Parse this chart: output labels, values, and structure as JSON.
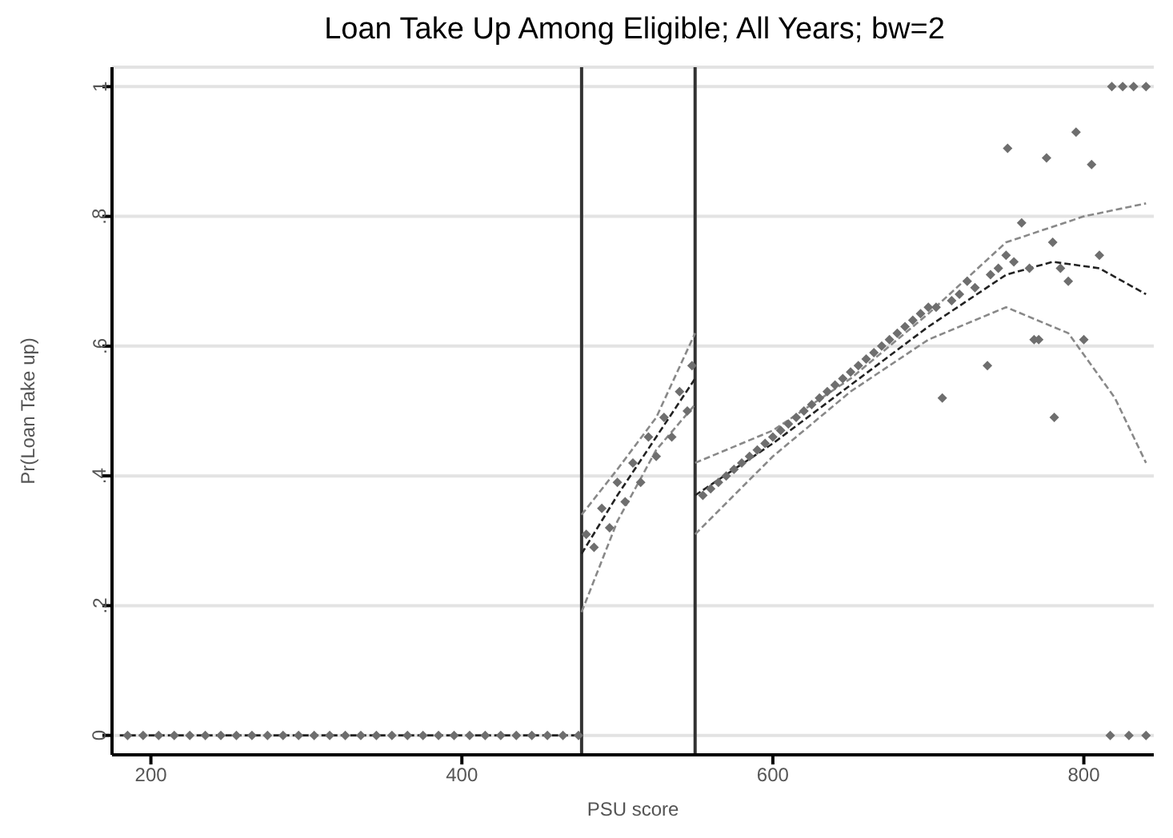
{
  "chart_data": {
    "type": "scatter",
    "title": "Loan Take Up Among Eligible; All Years; bw=2",
    "xlabel": "PSU score",
    "ylabel": "Pr(Loan Take up)",
    "xlim": [
      175,
      845
    ],
    "xticks": [
      200,
      400,
      600,
      800
    ],
    "ylim": [
      -0.03,
      1.03
    ],
    "yticks": [
      0,
      {
        "value": 0.2,
        "label": ".2"
      },
      {
        "value": 0.4,
        "label": ".4"
      },
      {
        "value": 0.6,
        "label": ".6"
      },
      {
        "value": 0.8,
        "label": ".8"
      },
      1
    ],
    "grid": "y",
    "marker": "diamond",
    "legend": false,
    "ref_lines": [
      {
        "axis": "x",
        "value": 477,
        "color": "#333333"
      },
      {
        "axis": "x",
        "value": 550,
        "color": "#333333"
      }
    ],
    "series": [
      {
        "color": "#6e6e6e",
        "x": [
          185,
          195,
          205,
          215,
          225,
          235,
          245,
          255,
          265,
          275,
          285,
          295,
          305,
          315,
          325,
          335,
          345,
          355,
          365,
          375,
          385,
          395,
          405,
          415,
          425,
          435,
          445,
          455,
          465,
          475,
          480,
          485,
          490,
          495,
          500,
          505,
          510,
          515,
          520,
          525,
          530,
          535,
          540,
          545,
          548,
          555,
          560,
          565,
          570,
          575,
          580,
          585,
          590,
          595,
          600,
          605,
          610,
          615,
          620,
          625,
          630,
          635,
          640,
          645,
          650,
          655,
          660,
          665,
          670,
          675,
          680,
          685,
          690,
          695,
          700,
          705,
          709,
          715,
          720,
          725,
          730,
          738,
          740,
          745,
          750,
          751,
          755,
          760,
          765,
          768,
          771,
          776,
          780,
          781,
          785,
          790,
          795,
          800,
          805,
          810,
          818,
          825,
          832,
          840,
          817,
          829,
          840
        ],
        "values": [
          0,
          0,
          0,
          0,
          0,
          0,
          0,
          0,
          0,
          0,
          0,
          0,
          0,
          0,
          0,
          0,
          0,
          0,
          0,
          0,
          0,
          0,
          0,
          0,
          0,
          0,
          0,
          0,
          0,
          0,
          0.31,
          0.29,
          0.35,
          0.32,
          0.39,
          0.36,
          0.42,
          0.39,
          0.46,
          0.43,
          0.49,
          0.46,
          0.53,
          0.5,
          0.57,
          0.37,
          0.38,
          0.39,
          0.4,
          0.41,
          0.42,
          0.43,
          0.44,
          0.45,
          0.46,
          0.47,
          0.48,
          0.49,
          0.5,
          0.51,
          0.52,
          0.53,
          0.54,
          0.55,
          0.56,
          0.57,
          0.58,
          0.59,
          0.6,
          0.61,
          0.62,
          0.63,
          0.64,
          0.65,
          0.66,
          0.66,
          0.52,
          0.67,
          0.68,
          0.7,
          0.69,
          0.57,
          0.71,
          0.72,
          0.74,
          0.905,
          0.73,
          0.79,
          0.72,
          0.61,
          0.61,
          0.89,
          0.76,
          0.49,
          0.72,
          0.7,
          0.93,
          0.61,
          0.88,
          0.74,
          1,
          1,
          1,
          1,
          0,
          0,
          0
        ]
      },
      {
        "type": "line",
        "marker": "none",
        "color": "#222222",
        "line_style": "dashed",
        "x": [
          180,
          477
        ],
        "values": [
          0,
          0
        ]
      },
      {
        "type": "line",
        "marker": "none",
        "color": "#222222",
        "line_style": "dashed",
        "x": [
          477,
          500,
          525,
          550
        ],
        "values": [
          0.28,
          0.37,
          0.46,
          0.55
        ]
      },
      {
        "type": "line",
        "marker": "none",
        "color": "#888888",
        "line_style": "dashed",
        "x": [
          477,
          500,
          525,
          550
        ],
        "values": [
          0.19,
          0.33,
          0.44,
          0.51
        ]
      },
      {
        "type": "line",
        "marker": "none",
        "color": "#888888",
        "line_style": "dashed",
        "x": [
          477,
          500,
          525,
          550
        ],
        "values": [
          0.34,
          0.41,
          0.49,
          0.62
        ]
      },
      {
        "type": "line",
        "marker": "none",
        "color": "#222222",
        "line_style": "dashed",
        "x": [
          550,
          600,
          650,
          700,
          750,
          780,
          810,
          840
        ],
        "values": [
          0.37,
          0.45,
          0.54,
          0.63,
          0.71,
          0.73,
          0.72,
          0.68
        ]
      },
      {
        "type": "line",
        "marker": "none",
        "color": "#888888",
        "line_style": "dashed",
        "x": [
          550,
          600,
          650,
          700,
          750,
          790,
          820,
          840
        ],
        "values": [
          0.31,
          0.43,
          0.53,
          0.61,
          0.66,
          0.62,
          0.52,
          0.42
        ]
      },
      {
        "type": "line",
        "marker": "none",
        "color": "#888888",
        "line_style": "dashed",
        "x": [
          550,
          600,
          650,
          700,
          750,
          800,
          840
        ],
        "values": [
          0.42,
          0.47,
          0.55,
          0.65,
          0.76,
          0.8,
          0.82
        ]
      }
    ]
  }
}
